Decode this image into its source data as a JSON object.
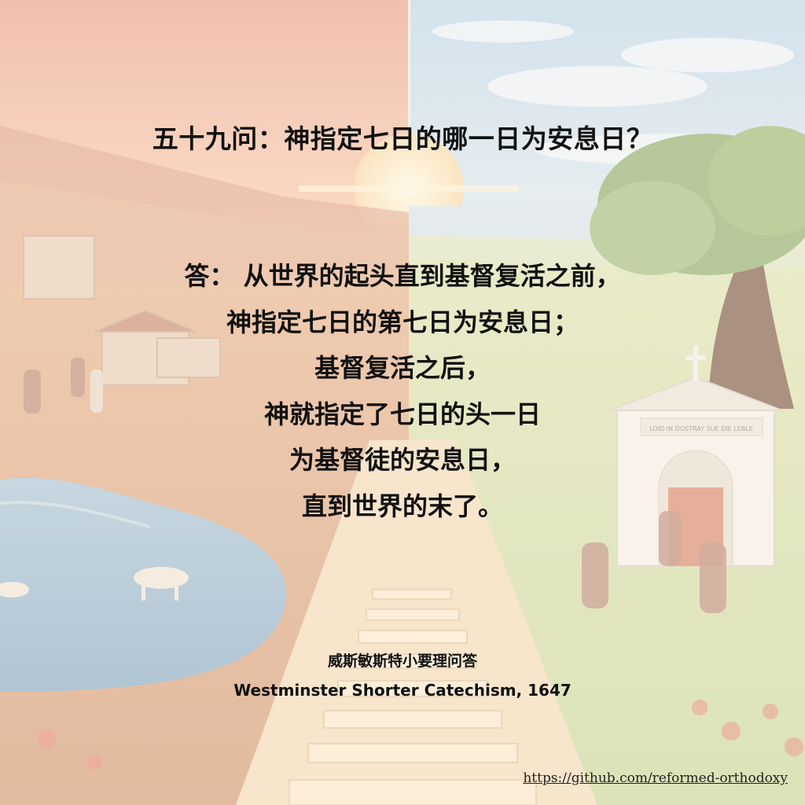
{
  "question": "五十九问：神指定七日的哪一日为安息日？",
  "answer_lines": [
    "答：  从世界的起头直到基督复活之前，",
    "神指定七日的第七日为安息日；",
    "基督复活之后，",
    "神就指定了七日的头一日",
    "为基督徒的安息日，",
    "直到世界的末了。"
  ],
  "source_cn": "威斯敏斯特小要理问答",
  "source_en": "Westminster Shorter Catechism, 1647",
  "link": "https://github.com/reformed-orthodoxy",
  "church_sign": "LOID IN DOSTRAY SUE DIE LEBLE",
  "colors": {
    "sky_left": "#f3b39a",
    "sky_right": "#cfe3f0",
    "sun": "#fde6b8",
    "river": "#8fb3cf",
    "grass": "#c9d79a",
    "path": "#f1d4ad"
  }
}
